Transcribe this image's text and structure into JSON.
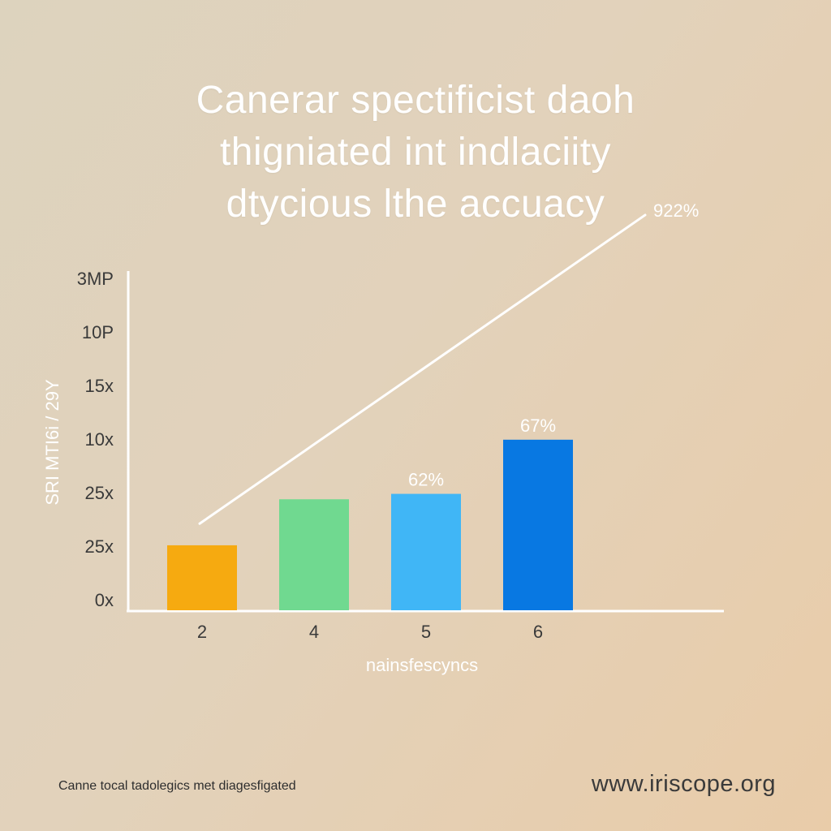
{
  "chart_data": {
    "type": "bar",
    "title_lines": [
      "Canerar spectificist daoh",
      "thigniated int indlaciity",
      "dtycious lthe accuacy"
    ],
    "ylabel": "SRI MTI6i / 29Y",
    "xlabel": "nainsfescyncs",
    "yticks": [
      "3MP",
      "10P",
      "15x",
      "10x",
      "25x",
      "25x",
      "0x"
    ],
    "categories": [
      "2",
      "4",
      "5",
      "6"
    ],
    "values": [
      0.24,
      0.41,
      0.43,
      0.63
    ],
    "ylim": [
      0,
      1.25
    ],
    "bar_colors": [
      "#f6aa10",
      "#70d990",
      "#40b6f6",
      "#0878e2"
    ],
    "data_labels": [
      "",
      "",
      "62%",
      "67%"
    ],
    "trend_line": {
      "start": 0.32,
      "end": 1.46,
      "label": "922%",
      "color": "#ffffff"
    },
    "grid": false,
    "legend": "none"
  },
  "footer": {
    "note": "Canne tocal tadolegics met diagesfigated",
    "url": "www.iriscope.org"
  }
}
